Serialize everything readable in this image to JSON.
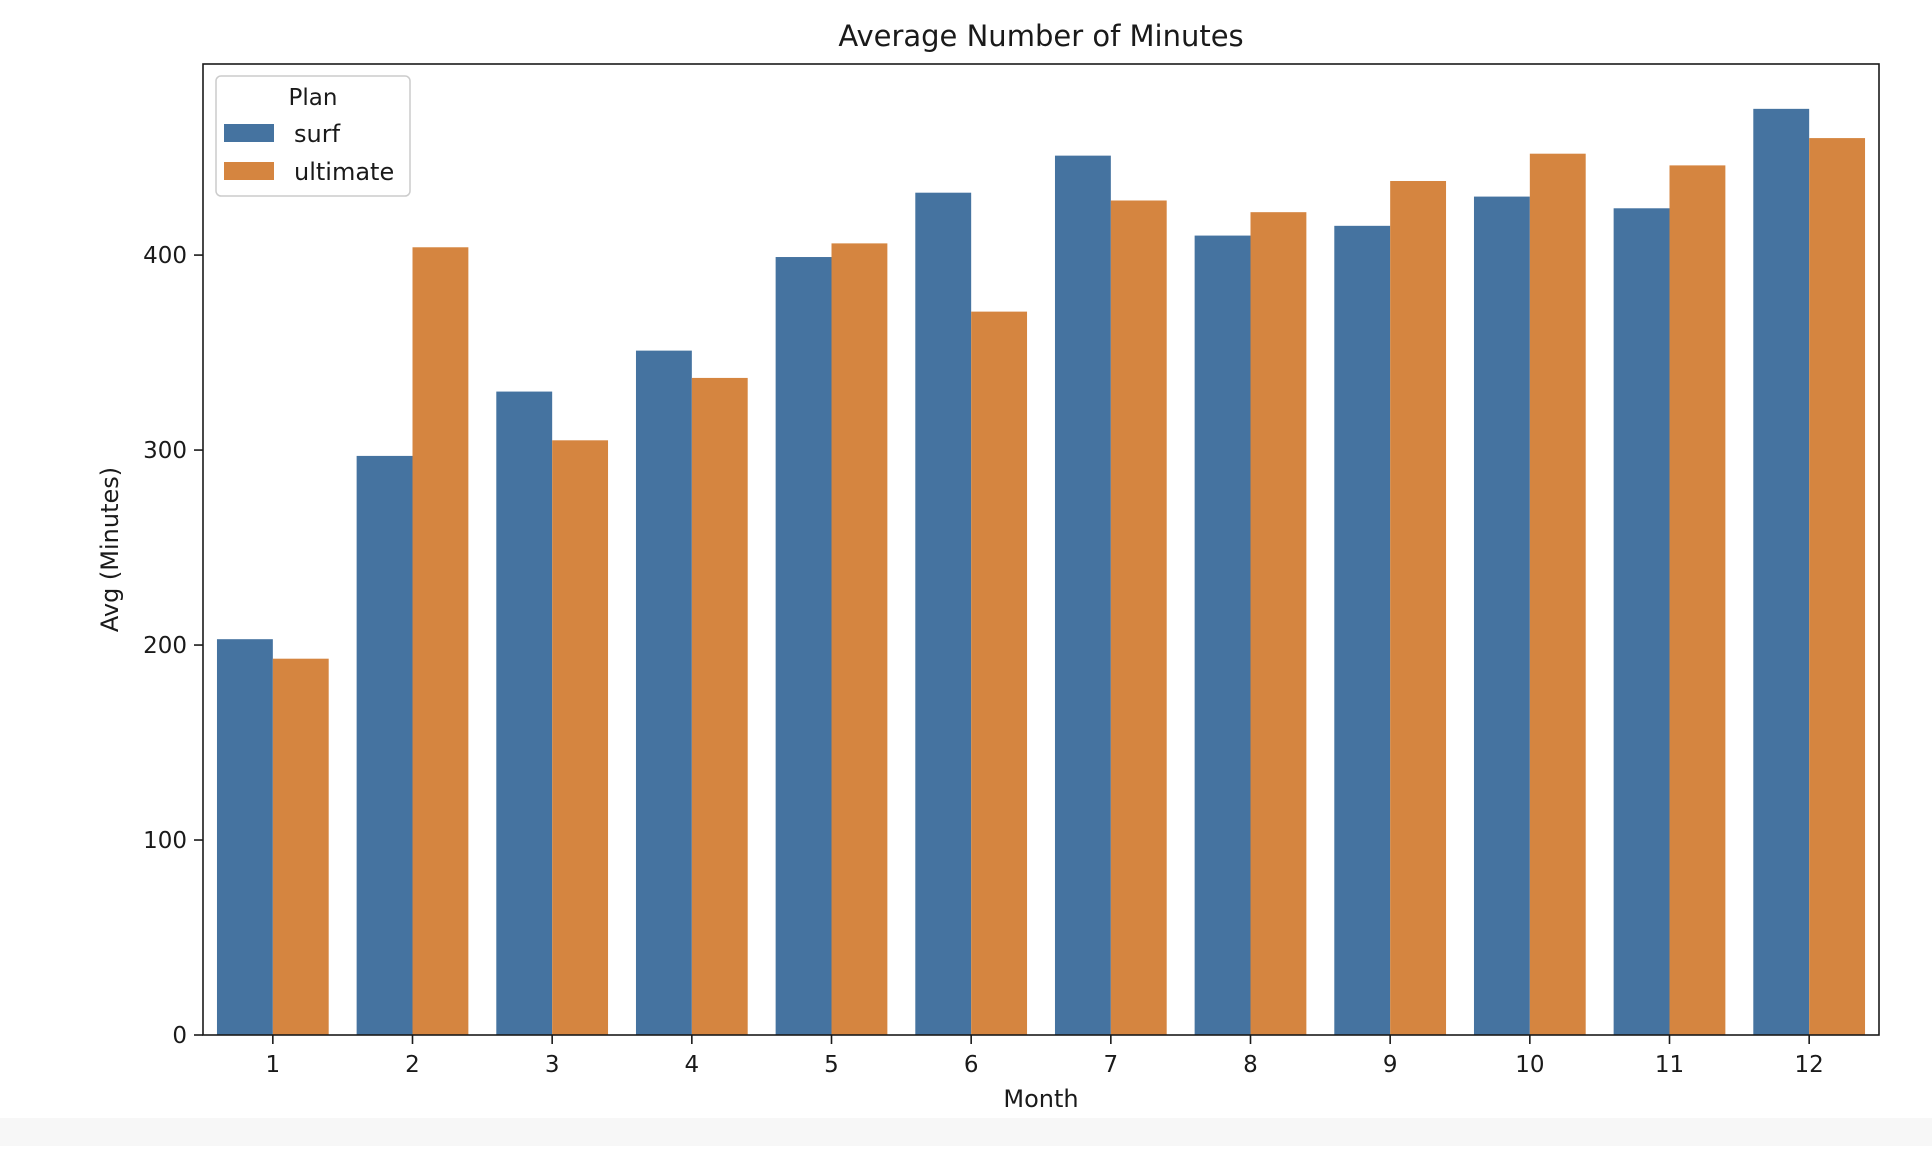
{
  "chart_data": {
    "type": "bar",
    "title": "Average Number of Minutes",
    "xlabel": "Month",
    "ylabel": "Avg (Minutes)",
    "categories": [
      "1",
      "2",
      "3",
      "4",
      "5",
      "6",
      "7",
      "8",
      "9",
      "10",
      "11",
      "12"
    ],
    "series": [
      {
        "name": "surf",
        "color": "#4573a0",
        "values": [
          203,
          297,
          330,
          351,
          399,
          432,
          451,
          410,
          415,
          430,
          424,
          475
        ]
      },
      {
        "name": "ultimate",
        "color": "#d58540",
        "values": [
          193,
          404,
          305,
          337,
          406,
          371,
          428,
          422,
          438,
          452,
          446,
          460
        ]
      }
    ],
    "ylim": [
      0,
      498
    ],
    "yticks": [
      0,
      100,
      200,
      300,
      400
    ],
    "grid": false,
    "legend": {
      "title": "Plan",
      "position": "top-left"
    }
  }
}
